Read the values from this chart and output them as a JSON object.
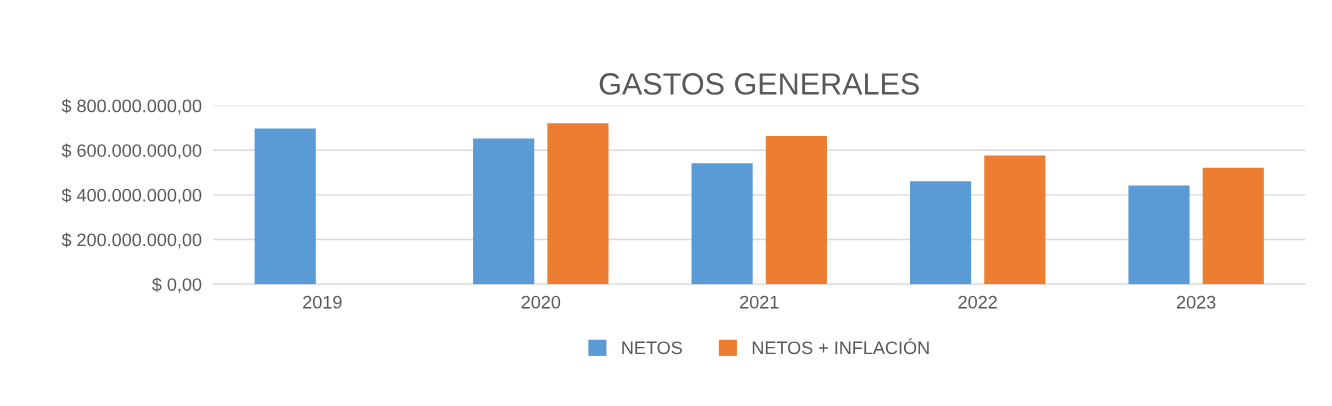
{
  "chart_data": {
    "type": "bar",
    "title": "GASTOS GENERALES",
    "categories": [
      "2019",
      "2020",
      "2021",
      "2022",
      "2023"
    ],
    "series": [
      {
        "name": "NETOS",
        "color": "#5b9bd5",
        "values": [
          697000000,
          652000000,
          542000000,
          461000000,
          442000000
        ]
      },
      {
        "name": "NETOS + INFLACIÓN",
        "color": "#ed7d31",
        "values": [
          null,
          721000000,
          664000000,
          576000000,
          521000000
        ]
      }
    ],
    "ylim": [
      0,
      800000000
    ],
    "yticks": [
      {
        "value": 0,
        "label": "$ 0,00"
      },
      {
        "value": 200000000,
        "label": "$ 200.000.000,00"
      },
      {
        "value": 400000000,
        "label": "$ 400.000.000,00"
      },
      {
        "value": 600000000,
        "label": "$ 600.000.000,00"
      },
      {
        "value": 800000000,
        "label": "$ 800.000.000,00"
      }
    ],
    "grid": "y",
    "legend": "bottom"
  }
}
